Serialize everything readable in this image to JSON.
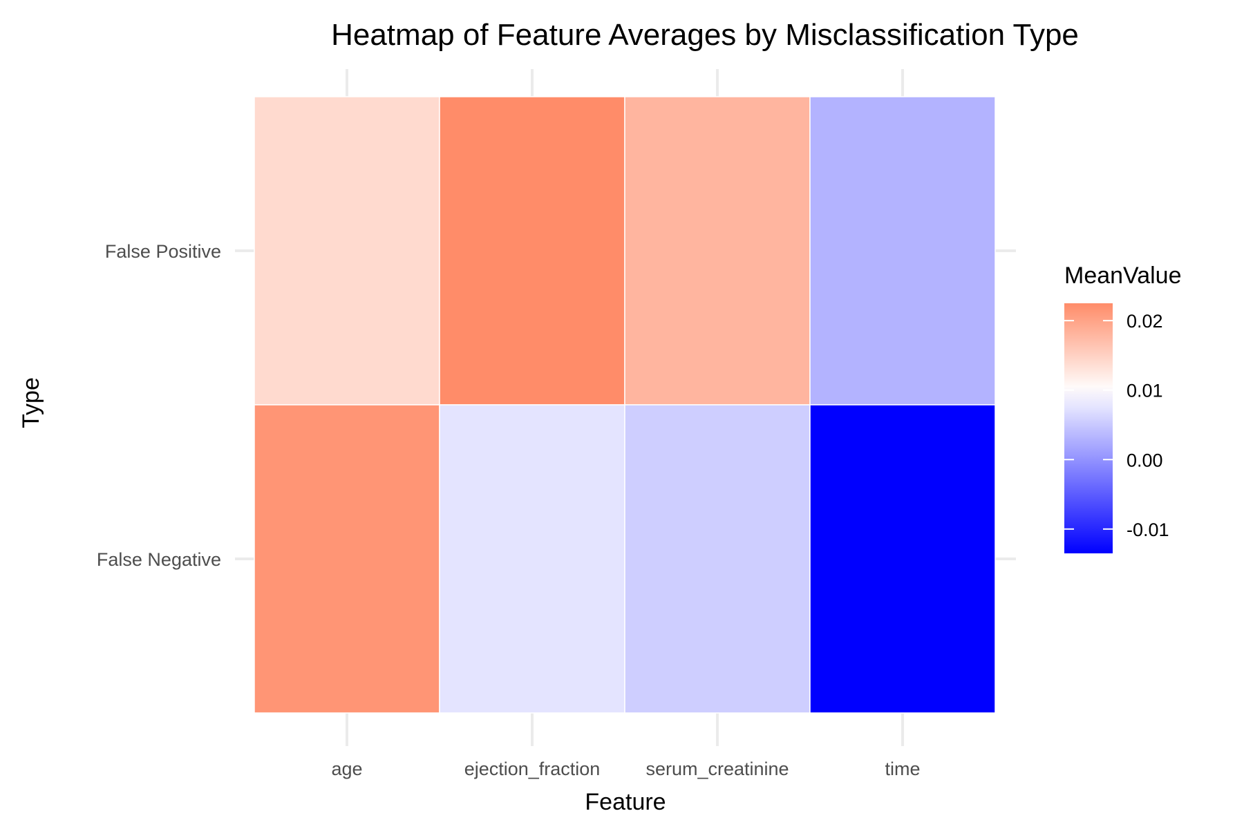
{
  "chart_data": {
    "type": "heatmap",
    "title": "Heatmap of Feature Averages by Misclassification Type",
    "xlabel": "Feature",
    "ylabel": "Type",
    "x_categories": [
      "age",
      "ejection_fraction",
      "serum_creatinine",
      "time"
    ],
    "y_categories": [
      "False Positive",
      "False Negative"
    ],
    "values": [
      [
        0.014,
        0.0225,
        0.018,
        0.003
      ],
      [
        0.0215,
        0.0075,
        0.0055,
        -0.0135
      ]
    ],
    "legend": {
      "title": "MeanValue",
      "ticks": [
        0.02,
        0.01,
        0.0,
        -0.01
      ],
      "tick_labels": [
        "0.02",
        "0.01",
        "0.00",
        "-0.01"
      ],
      "min": -0.0135,
      "max": 0.0225,
      "mid": 0.01,
      "colors": {
        "low": "#0000ff",
        "mid": "#ffffff",
        "high": "#ff8c69"
      },
      "placement": "right"
    },
    "grid": true
  }
}
